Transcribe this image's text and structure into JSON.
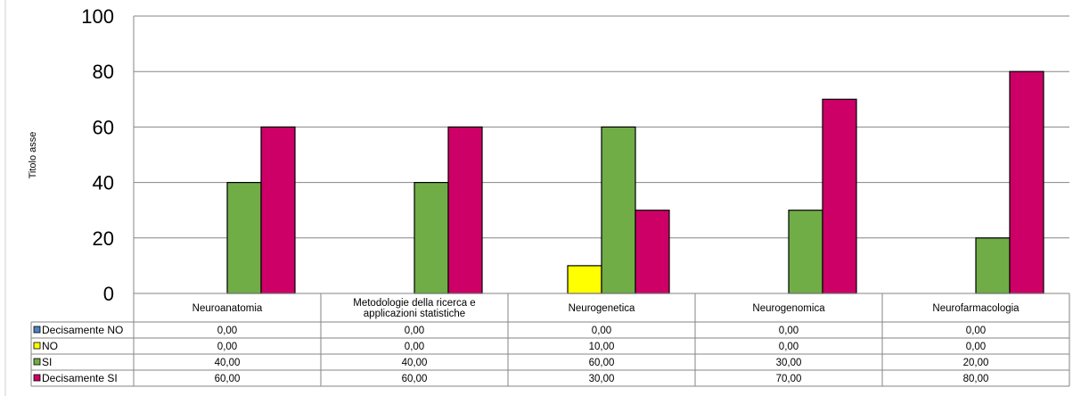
{
  "chart_data": {
    "type": "bar",
    "title": "",
    "xlabel": "",
    "ylabel": "Titolo asse",
    "ylim": [
      0,
      100
    ],
    "yticks": [
      "0",
      "20",
      "40",
      "60",
      "80",
      "100"
    ],
    "grid": true,
    "legend": "data-table-left",
    "categories": [
      "Neuroanatomia",
      "Metodologie della ricerca e applicazioni statistiche",
      "Neurogenetica",
      "Neurogenomica",
      "Neurofarmacologia"
    ],
    "series": [
      {
        "name": "Decisamente NO",
        "color": "#4f81bd",
        "values": [
          0,
          0,
          0,
          0,
          0
        ],
        "labels": [
          "0,00",
          "0,00",
          "0,00",
          "0,00",
          "0,00"
        ]
      },
      {
        "name": "NO",
        "color": "#ffff00",
        "values": [
          0,
          0,
          10,
          0,
          0
        ],
        "labels": [
          "0,00",
          "0,00",
          "10,00",
          "0,00",
          "0,00"
        ]
      },
      {
        "name": "SI",
        "color": "#70ad47",
        "values": [
          40,
          40,
          60,
          30,
          20
        ],
        "labels": [
          "40,00",
          "40,00",
          "60,00",
          "30,00",
          "20,00"
        ]
      },
      {
        "name": "Decisamente SI",
        "color": "#cc0066",
        "values": [
          60,
          60,
          30,
          70,
          80
        ],
        "labels": [
          "60,00",
          "60,00",
          "30,00",
          "70,00",
          "80,00"
        ]
      }
    ]
  }
}
